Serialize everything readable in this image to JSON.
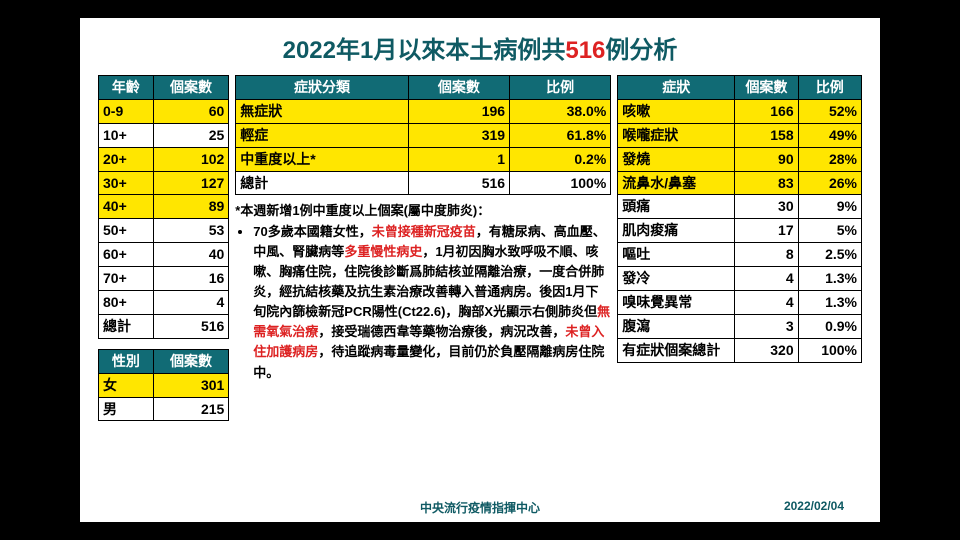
{
  "title_pre": "2022年1月以來本土病例共",
  "title_num": "516",
  "title_post": "例分析",
  "age_table": {
    "headers": [
      "年齡",
      "個案數"
    ],
    "rows": [
      {
        "label": "0-9",
        "count": 60,
        "yel": true
      },
      {
        "label": "10+",
        "count": 25,
        "yel": false
      },
      {
        "label": "20+",
        "count": 102,
        "yel": true
      },
      {
        "label": "30+",
        "count": 127,
        "yel": true
      },
      {
        "label": "40+",
        "count": 89,
        "yel": true
      },
      {
        "label": "50+",
        "count": 53,
        "yel": false
      },
      {
        "label": "60+",
        "count": 40,
        "yel": false
      },
      {
        "label": "70+",
        "count": 16,
        "yel": false
      },
      {
        "label": "80+",
        "count": 4,
        "yel": false
      },
      {
        "label": "總計",
        "count": 516,
        "yel": false
      }
    ]
  },
  "sex_table": {
    "headers": [
      "性別",
      "個案數"
    ],
    "rows": [
      {
        "label": "女",
        "count": 301,
        "yel": true
      },
      {
        "label": "男",
        "count": 215,
        "yel": false
      }
    ]
  },
  "severity_table": {
    "headers": [
      "症狀分類",
      "個案數",
      "比例"
    ],
    "rows": [
      {
        "label": "無症狀",
        "count": 196,
        "pct": "38.0%",
        "yel": true
      },
      {
        "label": "輕症",
        "count": 319,
        "pct": "61.8%",
        "yel": true
      },
      {
        "label": "中重度以上*",
        "count": 1,
        "pct": "0.2%",
        "yel": true
      },
      {
        "label": "總計",
        "count": 516,
        "pct": "100%",
        "yel": false
      }
    ]
  },
  "symptom_table": {
    "headers": [
      "症狀",
      "個案數",
      "比例"
    ],
    "rows": [
      {
        "label": "咳嗽",
        "count": 166,
        "pct": "52%",
        "yel": true
      },
      {
        "label": "喉嚨症狀",
        "count": 158,
        "pct": "49%",
        "yel": true
      },
      {
        "label": "發燒",
        "count": 90,
        "pct": "28%",
        "yel": true
      },
      {
        "label": "流鼻水/鼻塞",
        "count": 83,
        "pct": "26%",
        "yel": true
      },
      {
        "label": "頭痛",
        "count": 30,
        "pct": "9%",
        "yel": false
      },
      {
        "label": "肌肉痠痛",
        "count": 17,
        "pct": "5%",
        "yel": false
      },
      {
        "label": "嘔吐",
        "count": 8,
        "pct": "2.5%",
        "yel": false
      },
      {
        "label": "發冷",
        "count": 4,
        "pct": "1.3%",
        "yel": false
      },
      {
        "label": "嗅味覺異常",
        "count": 4,
        "pct": "1.3%",
        "yel": false
      },
      {
        "label": "腹瀉",
        "count": 3,
        "pct": "0.9%",
        "yel": false
      },
      {
        "label": "有症狀個案總計",
        "count": 320,
        "pct": "100%",
        "yel": false
      }
    ]
  },
  "note_head": "*本週新增1例中重度以上個案(屬中度肺炎)：",
  "note_segments": [
    {
      "t": "70多歲本國籍女性，",
      "r": false
    },
    {
      "t": "未曾接種新冠疫苗",
      "r": true
    },
    {
      "t": "，有糖尿病、高血壓、中風、腎臟病等",
      "r": false
    },
    {
      "t": "多重慢性病史",
      "r": true
    },
    {
      "t": "，1月初因胸水致呼吸不順、咳嗽、胸痛住院，住院後診斷爲肺結核並隔離治療，一度合併肺炎，經抗結核藥及抗生素治療改善轉入普通病房。後因1月下旬院內篩檢新冠PCR陽性(Ct22.6)，胸部X光顯示右側肺炎但",
      "r": false
    },
    {
      "t": "無需氧氣治療",
      "r": true
    },
    {
      "t": "，接受瑞德西韋等藥物治療後，病況改善，",
      "r": false
    },
    {
      "t": "未曾入住加護病房",
      "r": true
    },
    {
      "t": "，待追蹤病毒量變化，目前仍於負壓隔離病房住院中。",
      "r": false
    }
  ],
  "footer_center": "中央流行疫情指揮中心",
  "footer_date": "2022/02/04"
}
